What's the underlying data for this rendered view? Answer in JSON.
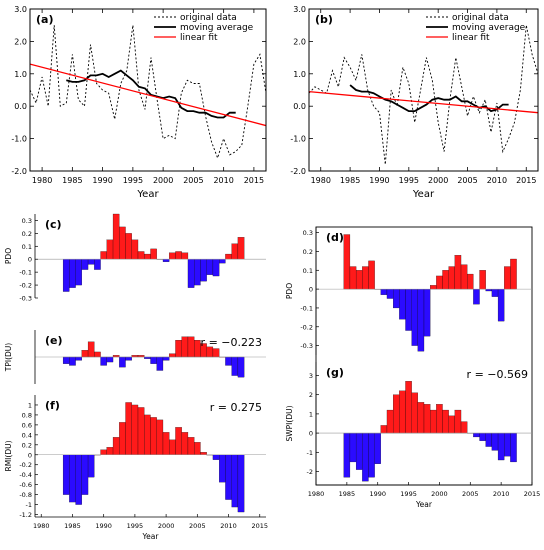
{
  "colors": {
    "positive": "#ff1a1a",
    "negative": "#2b0bff",
    "trend": "#ff0000",
    "line": "#000000",
    "original": "#000000"
  },
  "chart_data": [
    {
      "id": "a",
      "type": "line",
      "label": "(a)",
      "xlabel": "Year",
      "ylabel": "",
      "xlim": [
        1978,
        2017
      ],
      "ylim": [
        -2.0,
        3.0
      ],
      "xticks": [
        1980,
        1985,
        1990,
        1995,
        2000,
        2005,
        2010,
        2015
      ],
      "yticks": [
        -2.0,
        -1.0,
        0.0,
        1.0,
        2.0,
        3.0
      ],
      "ytick_labels": [
        "-2.0",
        "-1.0",
        "0.0",
        "1.0",
        "2.0",
        "3.0"
      ],
      "legend": [
        "original data",
        "moving average",
        "linear fit"
      ],
      "series": [
        {
          "name": "original data",
          "style": "dashed",
          "x": [
            1978,
            1979,
            1980,
            1981,
            1982,
            1983,
            1984,
            1985,
            1986,
            1987,
            1988,
            1989,
            1990,
            1991,
            1992,
            1993,
            1994,
            1995,
            1996,
            1997,
            1998,
            1999,
            2000,
            2001,
            2002,
            2003,
            2004,
            2005,
            2006,
            2007,
            2008,
            2009,
            2010,
            2011,
            2012,
            2013,
            2014,
            2015,
            2016,
            2017
          ],
          "y": [
            0.5,
            0.1,
            0.9,
            0.0,
            2.5,
            0.0,
            0.1,
            1.6,
            0.2,
            0.0,
            1.9,
            0.7,
            0.5,
            0.4,
            -0.4,
            0.7,
            1.1,
            2.5,
            0.5,
            -0.1,
            1.5,
            0.2,
            -1.0,
            -0.9,
            -1.0,
            0.4,
            0.8,
            0.7,
            0.7,
            -0.3,
            -1.1,
            -1.6,
            -1.0,
            -1.5,
            -1.4,
            -1.2,
            0.0,
            1.3,
            1.6,
            0.4
          ]
        },
        {
          "name": "moving average",
          "style": "solid",
          "x": [
            1984,
            1985,
            1986,
            1987,
            1988,
            1989,
            1990,
            1991,
            1992,
            1993,
            1994,
            1995,
            1996,
            1997,
            1998,
            1999,
            2000,
            2001,
            2002,
            2003,
            2004,
            2005,
            2006,
            2007,
            2008,
            2009,
            2010,
            2011,
            2012
          ],
          "y": [
            0.8,
            0.75,
            0.75,
            0.8,
            0.95,
            0.95,
            1.0,
            0.9,
            1.0,
            1.1,
            0.95,
            0.8,
            0.6,
            0.55,
            0.35,
            0.3,
            0.25,
            0.3,
            0.25,
            -0.05,
            -0.15,
            -0.15,
            -0.2,
            -0.2,
            -0.3,
            -0.35,
            -0.35,
            -0.2,
            -0.2
          ]
        },
        {
          "name": "linear fit",
          "style": "solid",
          "x": [
            1978,
            2017
          ],
          "y": [
            1.3,
            -0.6
          ]
        }
      ]
    },
    {
      "id": "b",
      "type": "line",
      "label": "(b)",
      "xlabel": "Year",
      "ylabel": "",
      "xlim": [
        1978,
        2017
      ],
      "ylim": [
        -2.0,
        3.0
      ],
      "xticks": [
        1980,
        1985,
        1990,
        1995,
        2000,
        2005,
        2010,
        2015
      ],
      "yticks": [
        -2.0,
        -1.0,
        0.0,
        1.0,
        2.0,
        3.0
      ],
      "ytick_labels": [
        "-2.0",
        "-1.0",
        "0.0",
        "1.0",
        "2.0",
        "3.0"
      ],
      "legend": [
        "original data",
        "moving average",
        "linear fit"
      ],
      "series": [
        {
          "name": "original data",
          "style": "dashed",
          "x": [
            1978,
            1979,
            1980,
            1981,
            1982,
            1983,
            1984,
            1985,
            1986,
            1987,
            1988,
            1989,
            1990,
            1991,
            1992,
            1993,
            1994,
            1995,
            1996,
            1997,
            1998,
            1999,
            2000,
            2001,
            2002,
            2003,
            2004,
            2005,
            2006,
            2007,
            2008,
            2009,
            2010,
            2011,
            2012,
            2013,
            2014,
            2015,
            2016,
            2017
          ],
          "y": [
            0.4,
            0.6,
            0.5,
            0.4,
            1.1,
            0.6,
            1.5,
            1.2,
            0.8,
            1.6,
            0.5,
            0.0,
            -0.2,
            -1.8,
            0.5,
            0.0,
            1.2,
            0.7,
            -0.5,
            0.5,
            1.5,
            0.8,
            -0.5,
            -1.4,
            0.2,
            1.5,
            0.6,
            -0.3,
            0.3,
            -0.2,
            0.2,
            -0.8,
            0.1,
            -1.4,
            -1.0,
            -0.5,
            0.5,
            2.5,
            1.6,
            1.0
          ]
        },
        {
          "name": "moving average",
          "style": "solid",
          "x": [
            1985,
            1986,
            1987,
            1988,
            1989,
            1990,
            1991,
            1992,
            1993,
            1994,
            1995,
            1996,
            1997,
            1998,
            1999,
            2000,
            2001,
            2002,
            2003,
            2004,
            2005,
            2006,
            2007,
            2008,
            2009,
            2010,
            2011,
            2012
          ],
          "y": [
            0.65,
            0.5,
            0.45,
            0.45,
            0.4,
            0.3,
            0.2,
            0.15,
            0.05,
            -0.05,
            -0.15,
            -0.15,
            -0.05,
            0.05,
            0.2,
            0.25,
            0.2,
            0.2,
            0.3,
            0.15,
            0.15,
            0.05,
            -0.05,
            0.0,
            -0.15,
            -0.1,
            0.05,
            0.05
          ]
        },
        {
          "name": "linear fit",
          "style": "solid",
          "x": [
            1978,
            2017
          ],
          "y": [
            0.45,
            -0.2
          ]
        }
      ]
    },
    {
      "id": "c",
      "type": "bar",
      "label": "(c)",
      "ylabel": "PDO",
      "ylim": [
        -0.3,
        0.35
      ],
      "yticks": [
        -0.3,
        -0.2,
        -0.1,
        0,
        0.1,
        0.2,
        0.3
      ],
      "ytick_labels": [
        "-0.3",
        "-0.2",
        "-0.1",
        "0",
        "0.1",
        "0.2",
        "0.3"
      ],
      "x": [
        1984,
        1985,
        1986,
        1987,
        1988,
        1989,
        1990,
        1991,
        1992,
        1993,
        1994,
        1995,
        1996,
        1997,
        1998,
        1999,
        2000,
        2001,
        2002,
        2003,
        2004,
        2005,
        2006,
        2007,
        2008,
        2009,
        2010,
        2011,
        2012
      ],
      "values": [
        -0.25,
        -0.22,
        -0.2,
        -0.08,
        -0.04,
        -0.08,
        0.06,
        0.15,
        0.35,
        0.25,
        0.2,
        0.15,
        0.06,
        0.04,
        0.08,
        0.0,
        -0.02,
        0.05,
        0.06,
        0.05,
        -0.22,
        -0.2,
        -0.17,
        -0.12,
        -0.13,
        -0.03,
        0.04,
        0.12,
        0.17
      ]
    },
    {
      "id": "e",
      "type": "bar",
      "label": "(e)",
      "ylabel": "TPI(DU)",
      "annotation": "r = −0.223",
      "ylim": [
        -0.8,
        0.8
      ],
      "yticks": [],
      "ytick_labels": [],
      "x": [
        1984,
        1985,
        1986,
        1987,
        1988,
        1989,
        1990,
        1991,
        1992,
        1993,
        1994,
        1995,
        1996,
        1997,
        1998,
        1999,
        2000,
        2001,
        2002,
        2003,
        2004,
        2005,
        2006,
        2007,
        2008,
        2009,
        2010,
        2011,
        2012
      ],
      "values": [
        -0.2,
        -0.25,
        -0.1,
        0.2,
        0.45,
        0.15,
        -0.25,
        -0.15,
        0.05,
        -0.3,
        -0.1,
        0.05,
        0.05,
        -0.05,
        -0.2,
        -0.4,
        -0.1,
        0.1,
        0.5,
        0.6,
        0.6,
        0.5,
        0.4,
        0.3,
        0.25,
        0.0,
        -0.25,
        -0.55,
        -0.6
      ]
    },
    {
      "id": "f",
      "type": "bar",
      "label": "(f)",
      "ylabel": "RMI(DU)",
      "annotation": "r = 0.275",
      "xlabel": "Year",
      "ylim": [
        -1.25,
        1.2
      ],
      "yticks": [
        -1.2,
        -1,
        -0.8,
        -0.6,
        -0.4,
        -0.2,
        0,
        0.2,
        0.4,
        0.6,
        0.8,
        1
      ],
      "ytick_labels": [
        "-1.2",
        "-1",
        "-0.8",
        "-0.6",
        "-0.4",
        "-0.2",
        "0",
        "0.2",
        "0.4",
        "0.6",
        "0.8",
        "1"
      ],
      "xlim": [
        1979,
        2016
      ],
      "xticks": [
        1980,
        1985,
        1990,
        1995,
        2000,
        2005,
        2010,
        2015
      ],
      "x": [
        1984,
        1985,
        1986,
        1987,
        1988,
        1989,
        1990,
        1991,
        1992,
        1993,
        1994,
        1995,
        1996,
        1997,
        1998,
        1999,
        2000,
        2001,
        2002,
        2003,
        2004,
        2005,
        2006,
        2007,
        2008,
        2009,
        2010,
        2011,
        2012
      ],
      "values": [
        -0.8,
        -0.95,
        -1.0,
        -0.8,
        -0.45,
        0.0,
        0.1,
        0.15,
        0.35,
        0.65,
        1.05,
        1.0,
        0.95,
        0.8,
        0.75,
        0.7,
        0.45,
        0.3,
        0.55,
        0.45,
        0.35,
        0.25,
        0.05,
        0.0,
        -0.1,
        -0.55,
        -0.9,
        -1.05,
        -1.15
      ]
    },
    {
      "id": "d",
      "type": "bar",
      "label": "(d)",
      "ylabel": "PDO",
      "ylim": [
        -0.35,
        0.33
      ],
      "yticks": [
        -0.3,
        -0.2,
        -0.1,
        0,
        0.1,
        0.2,
        0.3
      ],
      "ytick_labels": [
        "-0.3",
        "-0.2",
        "-0.1",
        "0",
        "0.1",
        "0.2",
        "0.3"
      ],
      "x": [
        1985,
        1986,
        1987,
        1988,
        1989,
        1990,
        1991,
        1992,
        1993,
        1994,
        1995,
        1996,
        1997,
        1998,
        1999,
        2000,
        2001,
        2002,
        2003,
        2004,
        2005,
        2006,
        2007,
        2008,
        2009,
        2010,
        2011,
        2012
      ],
      "values": [
        0.29,
        0.12,
        0.1,
        0.12,
        0.15,
        0.0,
        -0.03,
        -0.05,
        -0.1,
        -0.16,
        -0.22,
        -0.3,
        -0.33,
        -0.25,
        0.02,
        0.07,
        0.1,
        0.12,
        0.18,
        0.13,
        0.08,
        -0.08,
        0.1,
        -0.01,
        -0.04,
        -0.17,
        0.12,
        0.16
      ]
    },
    {
      "id": "g",
      "type": "bar",
      "label": "(g)",
      "ylabel": "SWPI(DU)",
      "annotation": "r = −0.569",
      "xlabel": "Year",
      "ylim": [
        -2.7,
        3.7
      ],
      "yticks": [
        -2,
        -1,
        0,
        1,
        2,
        3
      ],
      "ytick_labels": [
        "-2",
        "-1",
        "0",
        "1",
        "2",
        "3"
      ],
      "xlim": [
        1980,
        2015
      ],
      "xticks": [
        1980,
        1985,
        1990,
        1995,
        2000,
        2005,
        2010,
        2015
      ],
      "x": [
        1985,
        1986,
        1987,
        1988,
        1989,
        1990,
        1991,
        1992,
        1993,
        1994,
        1995,
        1996,
        1997,
        1998,
        1999,
        2000,
        2001,
        2002,
        2003,
        2004,
        2005,
        2006,
        2007,
        2008,
        2009,
        2010,
        2011,
        2012
      ],
      "values": [
        -2.3,
        -1.5,
        -1.9,
        -2.5,
        -2.3,
        -1.6,
        0.4,
        1.2,
        2.0,
        2.2,
        2.7,
        2.1,
        1.6,
        1.5,
        1.2,
        1.5,
        1.2,
        0.9,
        1.2,
        0.6,
        0.0,
        -0.2,
        -0.4,
        -0.7,
        -0.9,
        -1.4,
        -1.2,
        -1.5
      ]
    }
  ]
}
